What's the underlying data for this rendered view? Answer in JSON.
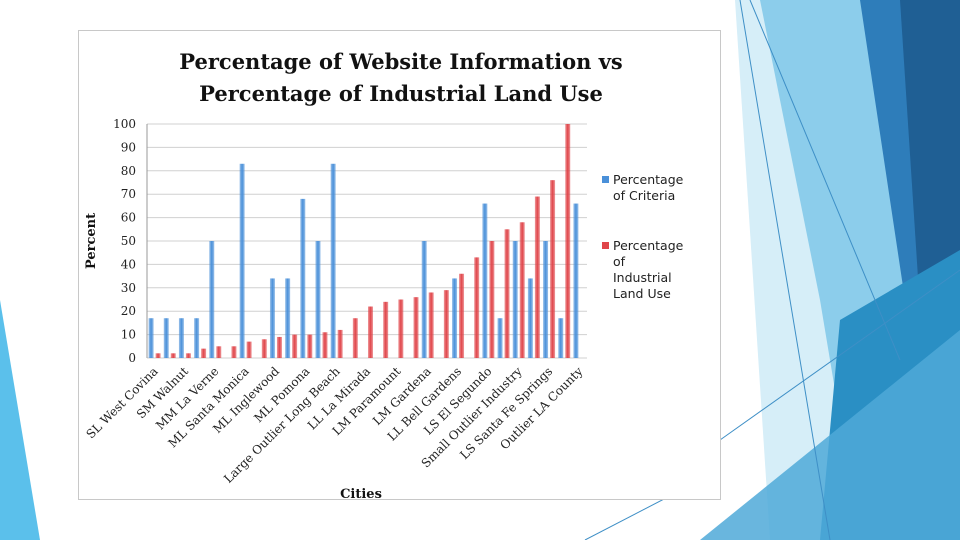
{
  "slide": {
    "accent_colors": [
      "#5BC0EB",
      "#1F6DA8",
      "#9FD6F0",
      "#2A88C8"
    ]
  },
  "chart_data": {
    "type": "bar",
    "title_line1": "Percentage of Website Information vs",
    "title_line2": "Percentage of Industrial Land Use",
    "xlabel": "Cities",
    "ylabel": "Percent",
    "ylim": [
      0,
      100
    ],
    "yticks": [
      "0",
      "10",
      "20",
      "30",
      "40",
      "50",
      "60",
      "70",
      "80",
      "90",
      "100"
    ],
    "grid": true,
    "legend_position": "right",
    "categories": [
      "SL West Covina",
      "",
      "SM Walnut",
      "",
      "MM La Verne",
      "",
      "ML Santa Monica",
      "",
      "ML Inglewood",
      "",
      "ML Pomona",
      "",
      "Large Outlier Long Beach",
      "",
      "LL La Mirada",
      "",
      "LM Paramount",
      "",
      "LM Gardena",
      "",
      "LL Bell Gardens",
      "",
      "LS El Segundo",
      "",
      "Small Outlier Industry",
      "",
      "LS Santa Fe Springs",
      "",
      "Outlier LA County"
    ],
    "series": [
      {
        "name": "Percentage of Criteria",
        "color": "#4A90D9",
        "values": [
          17,
          17,
          17,
          17,
          50,
          0,
          83,
          0,
          34,
          34,
          68,
          50,
          83,
          0,
          0,
          0,
          0,
          0,
          50,
          0,
          34,
          0,
          66,
          17,
          50,
          34,
          50,
          17,
          66
        ]
      },
      {
        "name": "Percentage of Industrial Land Use",
        "color": "#E0454A",
        "values": [
          2,
          2,
          2,
          4,
          5,
          5,
          7,
          8,
          9,
          10,
          10,
          11,
          12,
          17,
          22,
          24,
          25,
          26,
          28,
          29,
          36,
          43,
          50,
          55,
          58,
          69,
          76,
          100,
          0
        ]
      }
    ]
  }
}
